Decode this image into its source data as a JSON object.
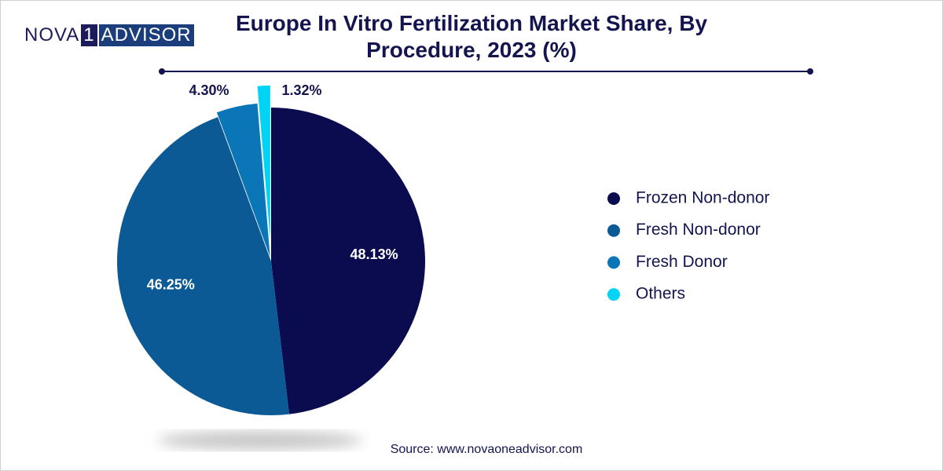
{
  "logo": [
    "NOVA",
    "1",
    "ADVISOR"
  ],
  "chart_data": {
    "type": "pie",
    "title": "Europe In Vitro Fertilization Market Share, By Procedure, 2023 (%)",
    "source": "Source: www.novaoneadvisor.com",
    "categories": [
      "Frozen Non-donor",
      "Fresh Non-donor",
      "Fresh Donor",
      "Others"
    ],
    "values": [
      48.13,
      46.25,
      4.3,
      1.32
    ],
    "value_labels": [
      "48.13%",
      "46.25%",
      "4.30%",
      "1.32%"
    ],
    "colors": [
      "#0b0b4f",
      "#0b5a96",
      "#0a76b8",
      "#00d4f5"
    ],
    "legend": "right"
  }
}
